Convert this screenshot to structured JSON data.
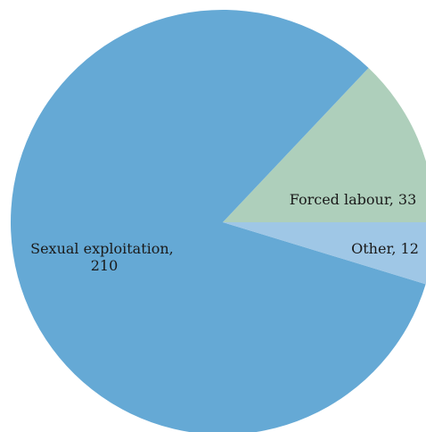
{
  "chart_data": {
    "type": "pie",
    "title": "",
    "slices": [
      {
        "label": "Sexual exploitation",
        "value": 210,
        "color": "#65a9d5"
      },
      {
        "label": "Forced labour",
        "value": 33,
        "color": "#aecfbb"
      },
      {
        "label": "Other",
        "value": 12,
        "color": "#9fc7e6"
      }
    ],
    "data_labels": [
      {
        "lines": [
          "Sexual exploitation,",
          "210"
        ]
      },
      {
        "lines": [
          "Forced labour, 33"
        ]
      },
      {
        "lines": [
          "Other, 12"
        ]
      }
    ],
    "legend": "none",
    "start_angle_deg": 0,
    "direction": "clockwise-from-3-oclock-reversed"
  }
}
